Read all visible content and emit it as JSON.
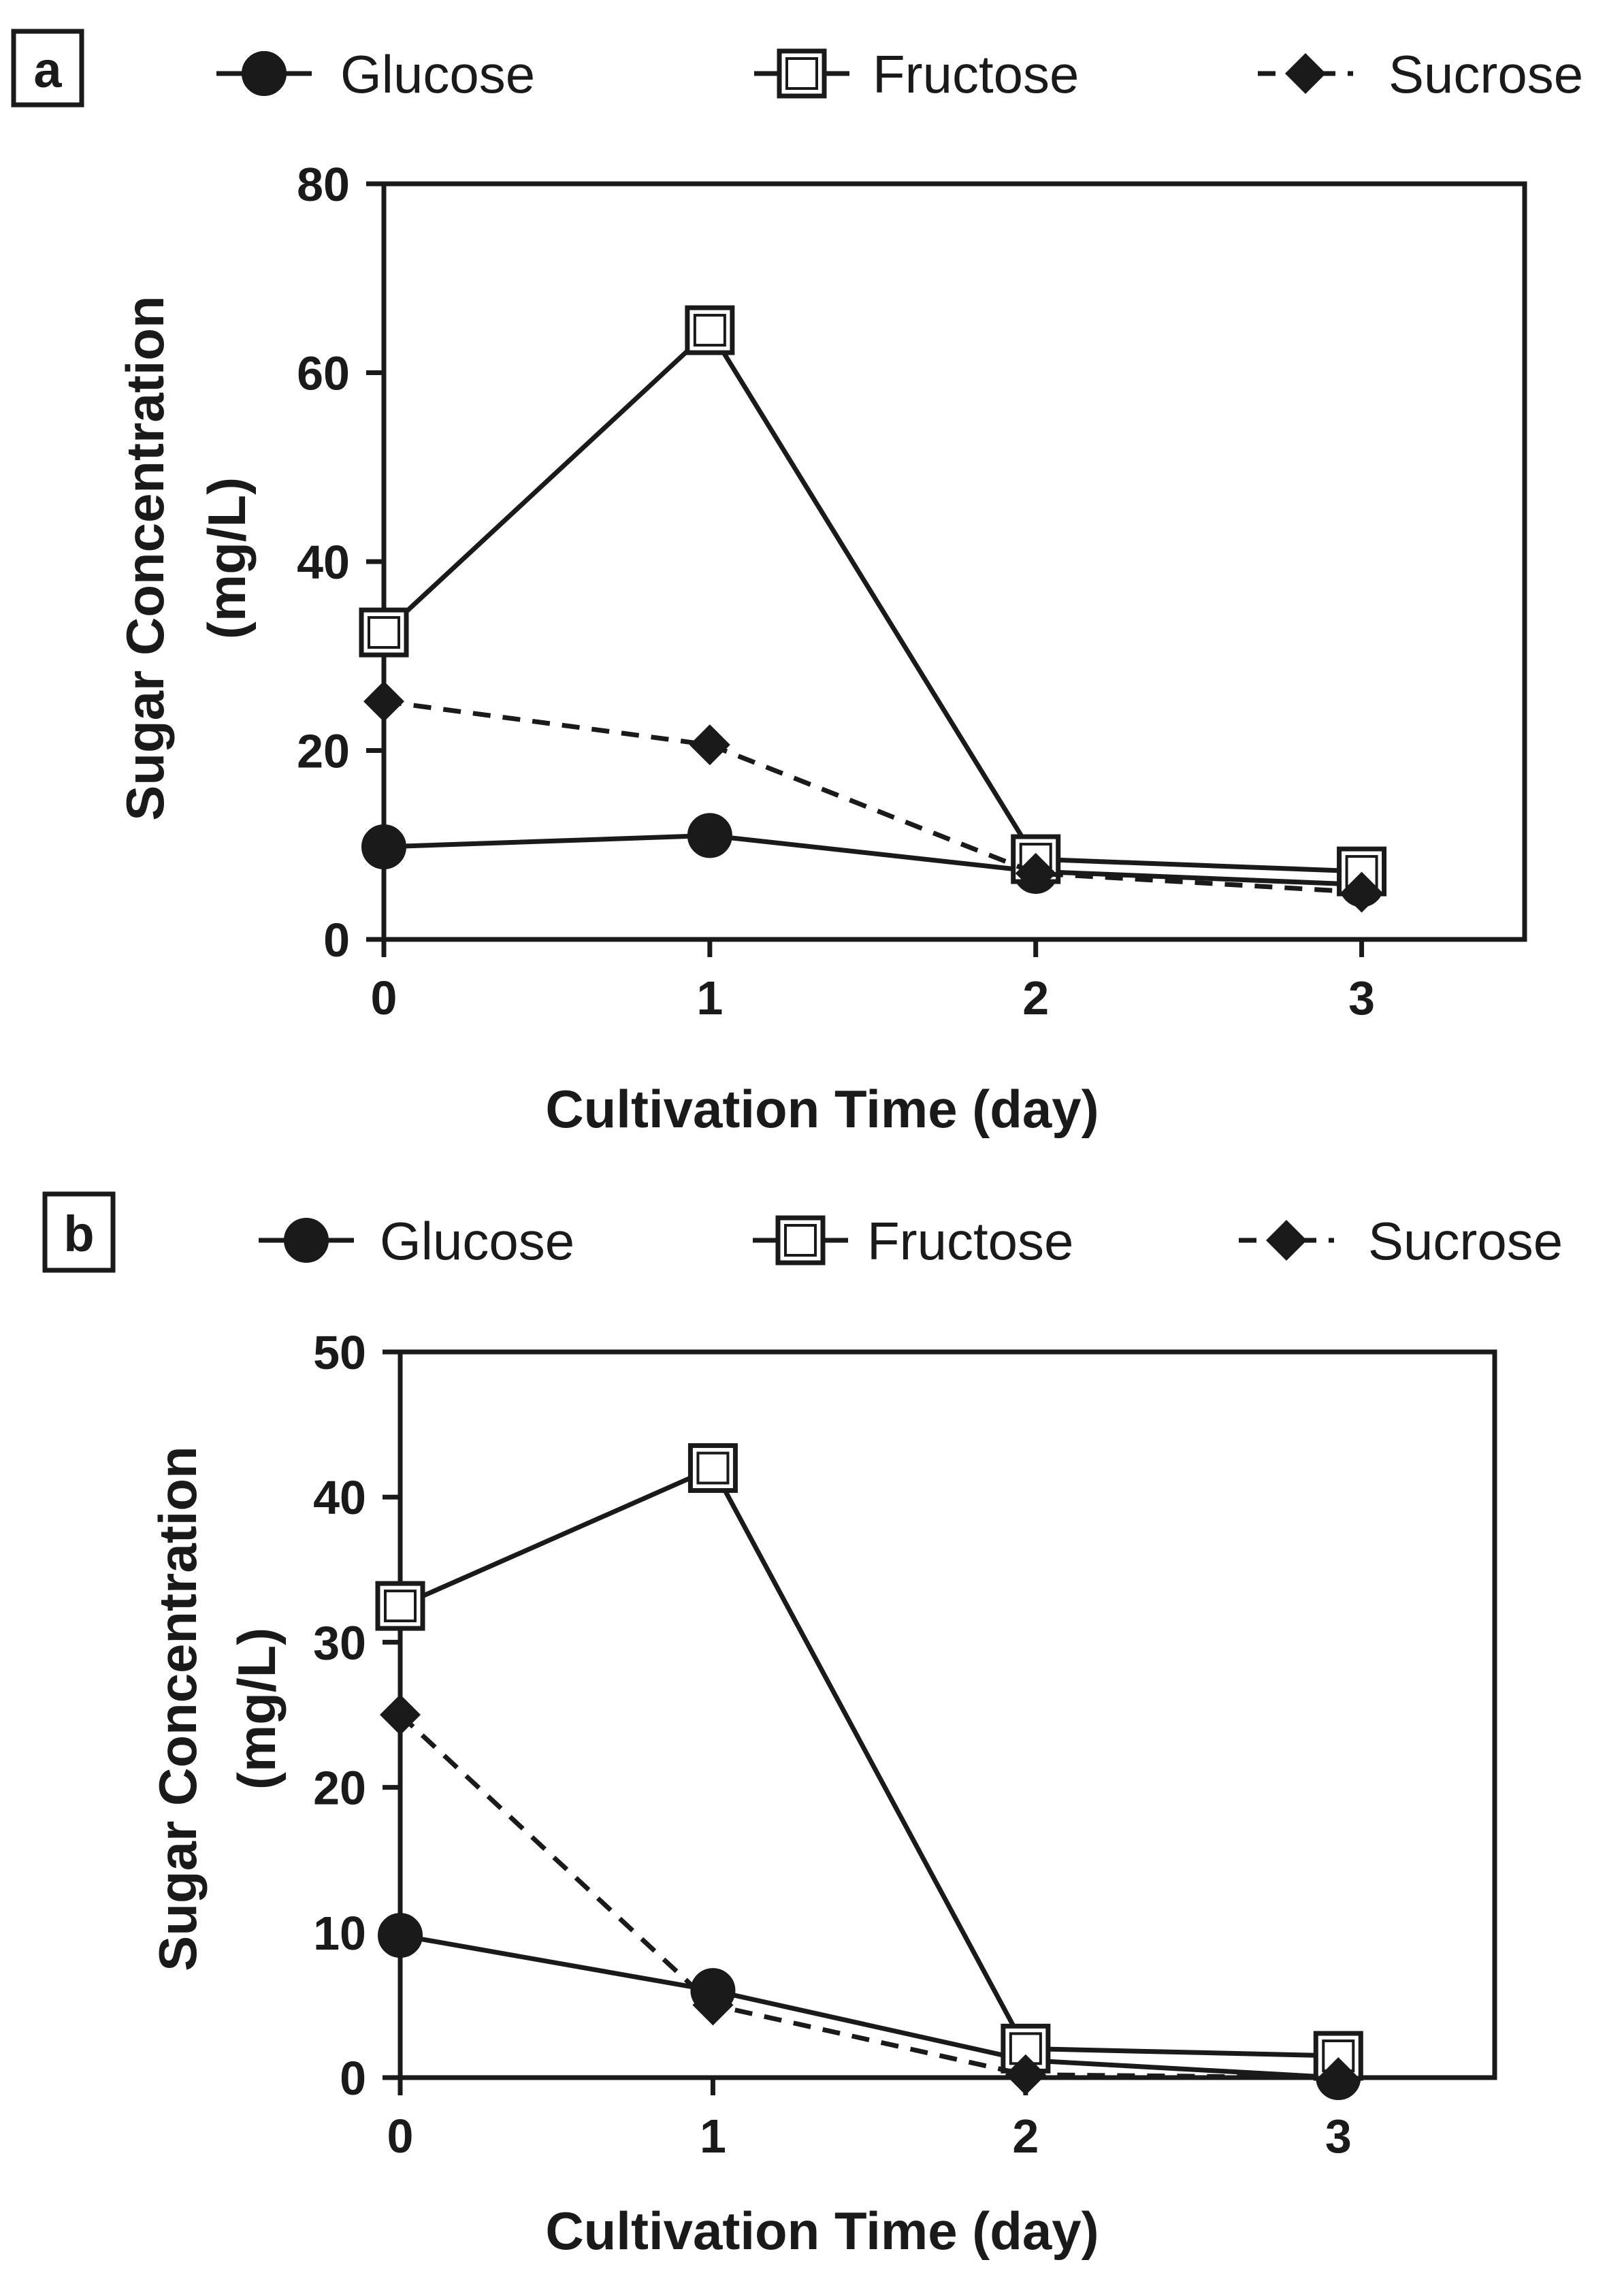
{
  "chart_data": [
    {
      "type": "line",
      "panel_label": "a",
      "xlabel": "Cultivation Time (day)",
      "ylabel_line1": "Sugar Concentration",
      "ylabel_line2": "(mg/L)",
      "x": [
        0,
        1,
        2,
        3
      ],
      "xlim": [
        0,
        3.5
      ],
      "ylim": [
        0,
        80
      ],
      "yticks": [
        0,
        20,
        40,
        60,
        80
      ],
      "xticks": [
        0,
        1,
        2,
        3
      ],
      "legend_position": "top",
      "series": [
        {
          "name": "Glucose",
          "marker": "circle",
          "line": "solid",
          "values": [
            9.8,
            11.0,
            7.2,
            5.8
          ]
        },
        {
          "name": "Fructose",
          "marker": "square",
          "line": "solid",
          "values": [
            32.5,
            64.5,
            8.5,
            7.2
          ]
        },
        {
          "name": "Sucrose",
          "marker": "diamond",
          "line": "dashed",
          "values": [
            25.2,
            20.6,
            7.0,
            5.0
          ]
        }
      ]
    },
    {
      "type": "line",
      "panel_label": "b",
      "xlabel": "Cultivation Time (day)",
      "ylabel_line1": "Sugar Concentration",
      "ylabel_line2": "(mg/L)",
      "x": [
        0,
        1,
        2,
        3
      ],
      "xlim": [
        0,
        3.5
      ],
      "ylim": [
        0,
        50
      ],
      "yticks": [
        0,
        10,
        20,
        30,
        40,
        50
      ],
      "xticks": [
        0,
        1,
        2,
        3
      ],
      "legend_position": "top",
      "series": [
        {
          "name": "Glucose",
          "marker": "circle",
          "line": "solid",
          "values": [
            9.8,
            6.0,
            1.2,
            0.0
          ]
        },
        {
          "name": "Fructose",
          "marker": "square",
          "line": "solid",
          "values": [
            32.5,
            42.0,
            2.0,
            1.5
          ]
        },
        {
          "name": "Sucrose",
          "marker": "diamond",
          "line": "dashed",
          "values": [
            25.0,
            5.0,
            0.2,
            0.0
          ]
        }
      ]
    }
  ],
  "colors": {
    "ink": "#1a1a1a",
    "background": "#ffffff",
    "marker_fill_open": "#ffffff"
  }
}
